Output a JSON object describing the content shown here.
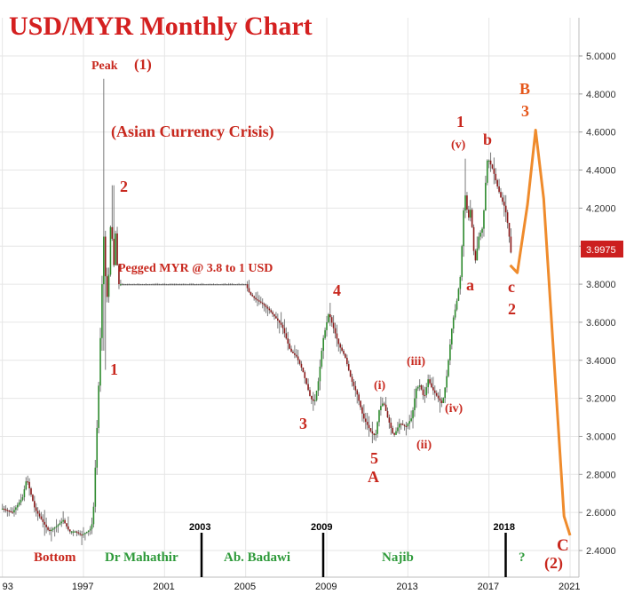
{
  "chart_data": {
    "type": "candlestick",
    "title": "USD/MYR Monthly Chart",
    "ylim": [
      2.35,
      5.1
    ],
    "xlim": [
      1993.0,
      2021.4
    ],
    "y_ticks": [
      "5.0000",
      "4.8000",
      "4.6000",
      "4.4000",
      "4.2000",
      "4.0000",
      "3.8000",
      "3.6000",
      "3.4000",
      "3.2000",
      "3.0000",
      "2.8000",
      "2.6000",
      "2.4000"
    ],
    "y_tick_values": [
      5.0,
      4.8,
      4.6,
      4.4,
      4.2,
      4.0,
      3.8,
      3.6,
      3.4,
      3.2,
      3.0,
      2.8,
      2.6,
      2.4
    ],
    "x_ticks": [
      "93",
      "1997",
      "2001",
      "2005",
      "2009",
      "2013",
      "2017",
      "2021"
    ],
    "x_tick_values": [
      1993,
      1997,
      2001,
      2005,
      2009,
      2013,
      2017,
      2021
    ],
    "last_price": {
      "label": "3.9975",
      "value": 3.9975
    },
    "up_color": "#2e8b2e",
    "down_color": "#8b1a1a",
    "price_path": [
      [
        1993.0,
        2.62
      ],
      [
        1993.5,
        2.6
      ],
      [
        1994.0,
        2.68
      ],
      [
        1994.2,
        2.78
      ],
      [
        1994.6,
        2.62
      ],
      [
        1995.0,
        2.55
      ],
      [
        1995.3,
        2.5
      ],
      [
        1995.7,
        2.53
      ],
      [
        1996.0,
        2.56
      ],
      [
        1996.3,
        2.5
      ],
      [
        1996.6,
        2.5
      ],
      [
        1996.9,
        2.48
      ],
      [
        1997.2,
        2.5
      ],
      [
        1997.4,
        2.52
      ],
      [
        1997.5,
        2.63
      ],
      [
        1997.65,
        3.0
      ],
      [
        1997.8,
        3.4
      ],
      [
        1997.9,
        3.75
      ],
      [
        1998.0,
        4.05
      ],
      [
        1998.1,
        3.8
      ],
      [
        1998.2,
        3.7
      ],
      [
        1998.35,
        4.15
      ],
      [
        1998.5,
        3.9
      ],
      [
        1998.6,
        4.1
      ],
      [
        1998.7,
        3.8
      ],
      [
        1998.8,
        3.8
      ],
      [
        2000,
        3.8
      ],
      [
        2002,
        3.8
      ],
      [
        2004,
        3.8
      ],
      [
        2005.0,
        3.8
      ],
      [
        2005.2,
        3.75
      ],
      [
        2005.5,
        3.72
      ],
      [
        2005.8,
        3.7
      ],
      [
        2006.2,
        3.66
      ],
      [
        2006.5,
        3.62
      ],
      [
        2006.8,
        3.58
      ],
      [
        2007.2,
        3.45
      ],
      [
        2007.5,
        3.42
      ],
      [
        2007.8,
        3.35
      ],
      [
        2008.2,
        3.2
      ],
      [
        2008.4,
        3.18
      ],
      [
        2008.6,
        3.3
      ],
      [
        2008.8,
        3.5
      ],
      [
        2009.1,
        3.65
      ],
      [
        2009.3,
        3.58
      ],
      [
        2009.6,
        3.48
      ],
      [
        2009.9,
        3.42
      ],
      [
        2010.2,
        3.3
      ],
      [
        2010.5,
        3.22
      ],
      [
        2010.8,
        3.1
      ],
      [
        2011.2,
        3.02
      ],
      [
        2011.4,
        3.0
      ],
      [
        2011.6,
        3.15
      ],
      [
        2011.8,
        3.18
      ],
      [
        2012.0,
        3.1
      ],
      [
        2012.3,
        3.0
      ],
      [
        2012.6,
        3.07
      ],
      [
        2012.9,
        3.05
      ],
      [
        2013.2,
        3.1
      ],
      [
        2013.4,
        3.25
      ],
      [
        2013.6,
        3.27
      ],
      [
        2013.8,
        3.2
      ],
      [
        2014.0,
        3.3
      ],
      [
        2014.2,
        3.25
      ],
      [
        2014.5,
        3.2
      ],
      [
        2014.7,
        3.17
      ],
      [
        2014.9,
        3.3
      ],
      [
        2015.2,
        3.6
      ],
      [
        2015.4,
        3.7
      ],
      [
        2015.6,
        3.85
      ],
      [
        2015.8,
        4.3
      ],
      [
        2015.9,
        4.2
      ],
      [
        2016.0,
        4.15
      ],
      [
        2016.1,
        4.2
      ],
      [
        2016.3,
        3.9
      ],
      [
        2016.5,
        4.05
      ],
      [
        2016.7,
        4.1
      ],
      [
        2016.9,
        4.45
      ],
      [
        2017.0,
        4.45
      ],
      [
        2017.2,
        4.4
      ],
      [
        2017.4,
        4.32
      ],
      [
        2017.6,
        4.25
      ],
      [
        2017.8,
        4.2
      ],
      [
        2017.95,
        4.1
      ],
      [
        2018.1,
        3.95
      ]
    ],
    "projection": [
      [
        2018.05,
        3.9
      ],
      [
        2018.4,
        3.86
      ],
      [
        2018.9,
        4.22
      ],
      [
        2019.3,
        4.61
      ],
      [
        2019.7,
        4.25
      ],
      [
        2020.7,
        2.58
      ],
      [
        2021.0,
        2.48
      ]
    ],
    "projection_color": "#ef8b2c",
    "wave_labels": {
      "peak": "Peak",
      "w1_paren": "(1)",
      "crisis": "(Asian Currency Crisis)",
      "w2_top": "2",
      "w1_low": "1",
      "pegged": "Pegged MYR @ 3.8 to 1 USD",
      "w4": "4",
      "w3": "3",
      "wi": "(i)",
      "wiii": "(iii)",
      "wiv": "(iv)",
      "wii": "(ii)",
      "w5": "5",
      "wA": "A",
      "wv": "(v)",
      "w1b": "1",
      "wb": "b",
      "wa": "a",
      "wc": "c",
      "w2b": "2",
      "wB": "B",
      "w3b": "3",
      "wC": "C",
      "w2p": "(2)"
    },
    "eras": [
      {
        "label": "Bottom",
        "color": "#c8281e"
      },
      {
        "label": "Dr Mahathir",
        "color": "#2e9a3a"
      },
      {
        "label": "Ab. Badawi",
        "color": "#2e9a3a"
      },
      {
        "label": "Najib",
        "color": "#2e9a3a"
      },
      {
        "label": "?",
        "color": "#2e9a3a"
      }
    ],
    "dividers": [
      {
        "year": 2003,
        "label": "2003"
      },
      {
        "year": 2009,
        "label": "2009"
      },
      {
        "year": 2018,
        "label": "2018"
      }
    ],
    "grid": true
  }
}
